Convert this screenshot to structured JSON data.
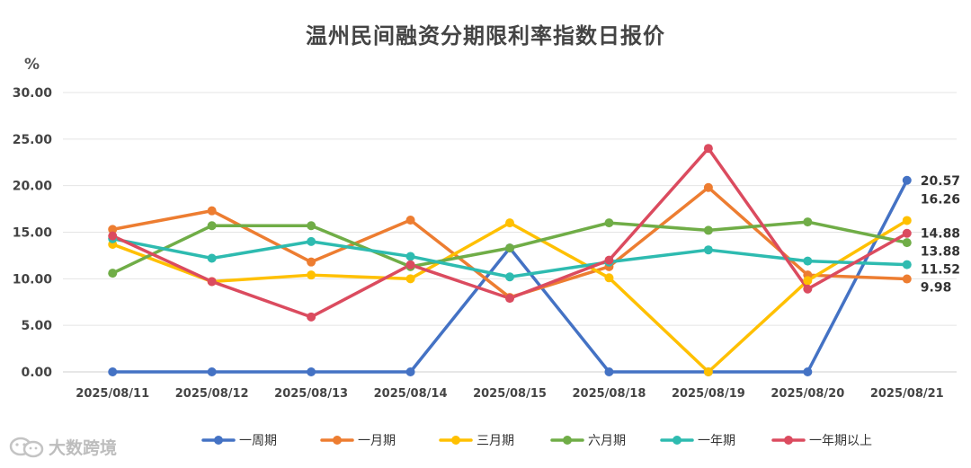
{
  "chart_data": {
    "type": "line",
    "title": "温州民间融资分期限利率指数日报价",
    "unit": "%",
    "categories": [
      "2025/08/11",
      "2025/08/12",
      "2025/08/13",
      "2025/08/14",
      "2025/08/15",
      "2025/08/18",
      "2025/08/19",
      "2025/08/20",
      "2025/08/21"
    ],
    "ylim": [
      0,
      30
    ],
    "yticks": [
      "0.00",
      "5.00",
      "10.00",
      "15.00",
      "20.00",
      "25.00",
      "30.00"
    ],
    "grid": true,
    "legend_position": "bottom",
    "series": [
      {
        "name": "一周期",
        "color": "#4472C4",
        "values": [
          0,
          0,
          0,
          0,
          13.3,
          0,
          0,
          0,
          20.57
        ],
        "end_label": "20.57"
      },
      {
        "name": "一月期",
        "color": "#ED7D31",
        "values": [
          15.3,
          17.3,
          11.8,
          16.3,
          8.0,
          11.3,
          19.8,
          10.4,
          9.98
        ],
        "end_label": "9.98"
      },
      {
        "name": "三月期",
        "color": "#FFC000",
        "values": [
          13.7,
          9.7,
          10.4,
          10.0,
          16.0,
          10.1,
          0,
          9.8,
          16.26
        ],
        "end_label": "16.26"
      },
      {
        "name": "六月期",
        "color": "#70AD47",
        "values": [
          10.6,
          15.7,
          15.7,
          11.3,
          13.3,
          16.0,
          15.2,
          16.1,
          13.88
        ],
        "end_label": "13.88"
      },
      {
        "name": "一年期",
        "color": "#2EBBB0",
        "values": [
          14.3,
          12.2,
          14.0,
          12.4,
          10.2,
          11.8,
          13.1,
          11.9,
          11.52
        ],
        "end_label": "11.52"
      },
      {
        "name": "一年期以上",
        "color": "#DB4B5F",
        "values": [
          14.6,
          9.7,
          5.9,
          11.5,
          7.9,
          12.0,
          24.0,
          8.9,
          14.88
        ],
        "end_label": "14.88"
      }
    ]
  },
  "watermark": {
    "text": "大数跨境",
    "icon": "wechat-bubbles-icon"
  }
}
